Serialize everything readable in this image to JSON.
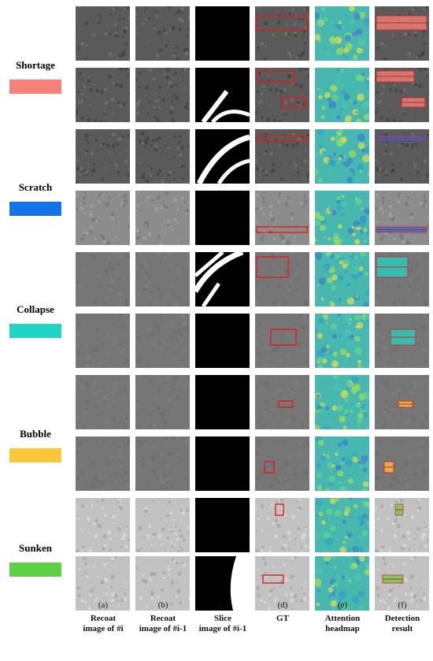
{
  "classes": [
    {
      "label": "Shortage",
      "color": "#f7827b"
    },
    {
      "label": "Scratch",
      "color": "#1473e6"
    },
    {
      "label": "Collapse",
      "color": "#21d4c5"
    },
    {
      "label": "Bubble",
      "color": "#fdc73c"
    },
    {
      "label": "Sunken",
      "color": "#5ed045"
    }
  ],
  "columns": [
    {
      "letter": "(a)",
      "line1": "Recoat",
      "line2": "image of #i"
    },
    {
      "letter": "(b)",
      "line1": "Recoat",
      "line2": "image of #i-1"
    },
    {
      "letter": "(c)",
      "line1": "Slice",
      "line2": "image of #i-1"
    },
    {
      "letter": "(d)",
      "line1": "GT",
      "line2": ""
    },
    {
      "letter": "(e)",
      "line1": "Attention",
      "line2": "headmap"
    },
    {
      "letter": "(f)",
      "line1": "Detection",
      "line2": "result"
    }
  ],
  "styles": {
    "box_color": "#e41a1c",
    "slice_fill": "#000000",
    "slice_line": "#ffffff"
  },
  "rows": [
    {
      "class": "Shortage",
      "tex": "dark",
      "slice": "black",
      "gt": [
        "top-band"
      ]
    },
    {
      "class": "Shortage",
      "tex": "dark",
      "slice": "lines-bl",
      "gt": [
        "upper-left",
        "right-small"
      ]
    },
    {
      "class": "Scratch",
      "tex": "dark",
      "slice": "arcs",
      "gt": [
        "top-thin"
      ]
    },
    {
      "class": "Scratch",
      "tex": "mid",
      "slice": "black",
      "gt": [
        "bottom-thin"
      ]
    },
    {
      "class": "Collapse",
      "tex": "smooth",
      "slice": "arcs-tl",
      "gt": [
        "left-mid"
      ]
    },
    {
      "class": "Collapse",
      "tex": "smooth",
      "slice": "black",
      "gt": [
        "center"
      ]
    },
    {
      "class": "Bubble",
      "tex": "smooth",
      "slice": "black",
      "gt": [
        "tiny-center"
      ]
    },
    {
      "class": "Bubble",
      "tex": "smooth",
      "slice": "black",
      "gt": [
        "tiny-left"
      ]
    },
    {
      "class": "Sunken",
      "tex": "bright",
      "slice": "black",
      "gt": [
        "tiny-top"
      ]
    },
    {
      "class": "Sunken",
      "tex": "bright",
      "slice": "arc-right",
      "gt": [
        "wide-center"
      ]
    }
  ]
}
